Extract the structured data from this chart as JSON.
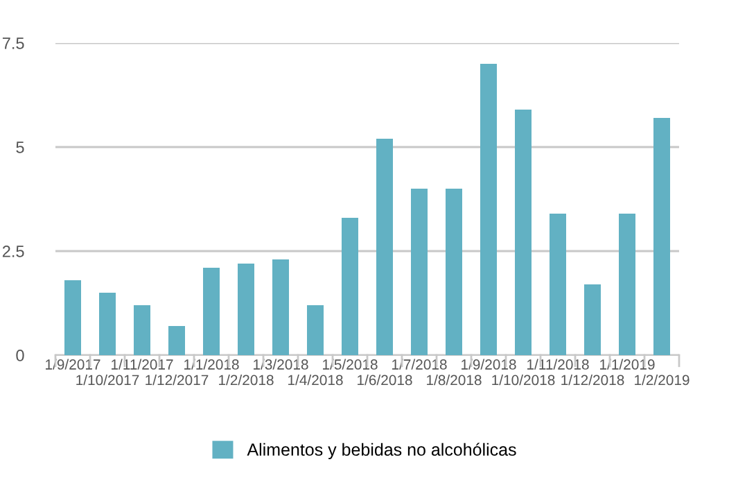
{
  "chart_data": {
    "type": "bar",
    "categories": [
      "1/9/2017",
      "1/10/2017",
      "1/11/2017",
      "1/12/2017",
      "1/1/2018",
      "1/2/2018",
      "1/3/2018",
      "1/4/2018",
      "1/5/2018",
      "1/6/2018",
      "1/7/2018",
      "1/8/2018",
      "1/9/2018",
      "1/10/2018",
      "1/11/2018",
      "1/12/2018",
      "1/1/2019",
      "1/2/2019"
    ],
    "series": [
      {
        "name": "Alimentos y bebidas no alcohólicas",
        "color": "#62b1c3",
        "values": [
          1.8,
          1.5,
          1.2,
          0.7,
          2.1,
          2.2,
          2.3,
          1.2,
          3.3,
          5.2,
          4.0,
          4.0,
          7.0,
          5.9,
          3.4,
          1.7,
          3.4,
          5.7
        ]
      }
    ],
    "ylim": [
      0,
      7.5
    ],
    "yticks": [
      0,
      2.5,
      5,
      7.5
    ],
    "grid": "y",
    "legend": "bottom"
  }
}
